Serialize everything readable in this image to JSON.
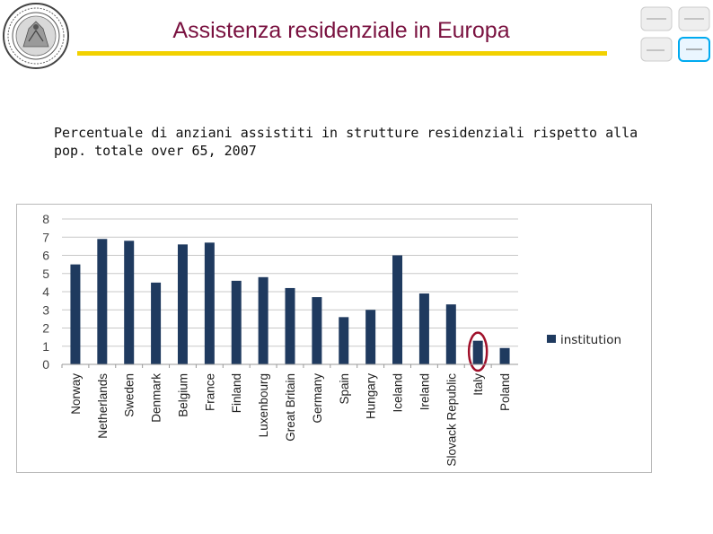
{
  "header": {
    "title": "Assistenza residenziale in Europa",
    "title_color": "#7a1240",
    "rule_color": "#f2d100"
  },
  "subtitle": "Percentuale di anziani assistiti in strutture residenziali rispetto alla pop. totale over 65, 2007",
  "chart_data": {
    "type": "bar",
    "title": "",
    "xlabel": "",
    "ylabel": "",
    "ylim": [
      0,
      8
    ],
    "yticks": [
      0,
      1,
      2,
      3,
      4,
      5,
      6,
      7,
      8
    ],
    "grid": true,
    "legend_position": "right",
    "categories": [
      "Norway",
      "Netherlands",
      "Sweden",
      "Denmark",
      "Belgium",
      "France",
      "Finland",
      "Luxenbourg",
      "Great Britain",
      "Germany",
      "Spain",
      "Hungary",
      "Iceland",
      "Ireland",
      "Slovack Republic",
      "Italy",
      "Poland"
    ],
    "series": [
      {
        "name": "institution",
        "color": "#1f3a5f",
        "values": [
          5.5,
          6.9,
          6.8,
          4.5,
          6.6,
          6.7,
          4.6,
          4.8,
          4.2,
          3.7,
          2.6,
          3.0,
          6.0,
          3.9,
          3.3,
          1.3,
          0.9
        ]
      }
    ],
    "highlight": {
      "category": "Italy",
      "color": "#a0102a"
    }
  }
}
